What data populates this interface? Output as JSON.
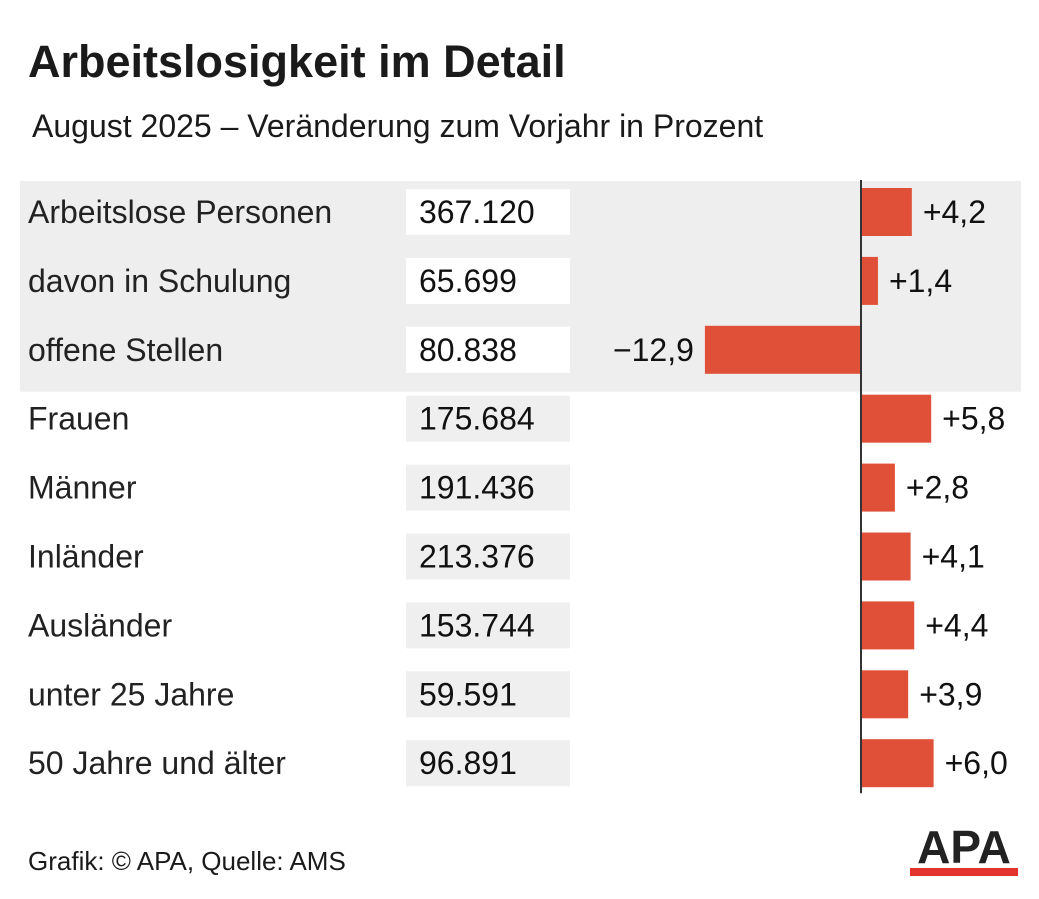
{
  "title": "Arbeitslosigkeit im Detail",
  "subtitle": "August 2025 – Veränderung zum Vorjahr in Prozent",
  "footer": "Grafik: © APA, Quelle: AMS",
  "logo_text": "APA",
  "colors": {
    "bar": "#e04f37",
    "highlight_band": "#eeeeee",
    "value_box_in_band": "#ffffff",
    "value_box": "#efefef",
    "axis": "#333333",
    "logo_red": "#e3342f",
    "logo_black": "#222222"
  },
  "chart_data": {
    "type": "bar",
    "orientation": "horizontal",
    "categories": [
      "Arbeitslose Personen",
      "davon in Schulung",
      "offene Stellen",
      "Frauen",
      "Männer",
      "Inländer",
      "Ausländer",
      "unter 25 Jahre",
      "50 Jahre und älter"
    ],
    "absolute_values": [
      "367.120",
      "65.699",
      "80.838",
      "175.684",
      "191.436",
      "213.376",
      "153.744",
      "59.591",
      "96.891"
    ],
    "values": [
      4.2,
      1.4,
      -12.9,
      5.8,
      2.8,
      4.1,
      4.4,
      3.9,
      6.0
    ],
    "value_labels": [
      "+4,2",
      "+1,4",
      "−12,9",
      "+5,8",
      "+2,8",
      "+4,1",
      "+4,4",
      "+3,9",
      "+6,0"
    ],
    "highlighted_rows": [
      0,
      1,
      2
    ],
    "xlim": [
      -12.9,
      6.0
    ],
    "grid": false,
    "legend": "none"
  }
}
